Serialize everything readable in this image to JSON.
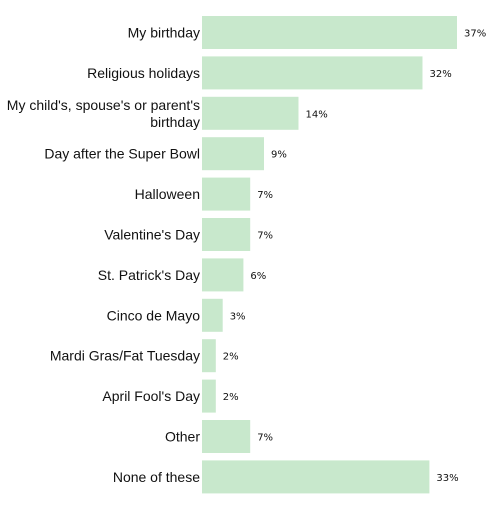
{
  "chart_data": {
    "type": "bar",
    "orientation": "horizontal",
    "categories": [
      "My birthday",
      "Religious holidays",
      "My child's, spouse's or parent's birthday",
      "Day after the Super Bowl",
      "Halloween",
      "Valentine's Day",
      "St. Patrick's Day",
      "Cinco de Mayo",
      "Mardi Gras/Fat Tuesday",
      "April Fool's Day",
      "Other",
      "None of these"
    ],
    "values": [
      37,
      32,
      14,
      9,
      7,
      7,
      6,
      3,
      2,
      2,
      7,
      33
    ],
    "value_labels": [
      "37%",
      "32%",
      "14%",
      "9%",
      "7%",
      "7%",
      "6%",
      "3%",
      "2%",
      "2%",
      "7%",
      "33%"
    ],
    "unit": "%",
    "xlim": [
      0,
      37
    ],
    "bar_color": "#c8e8cc",
    "grid": false,
    "axes_visible": false
  }
}
